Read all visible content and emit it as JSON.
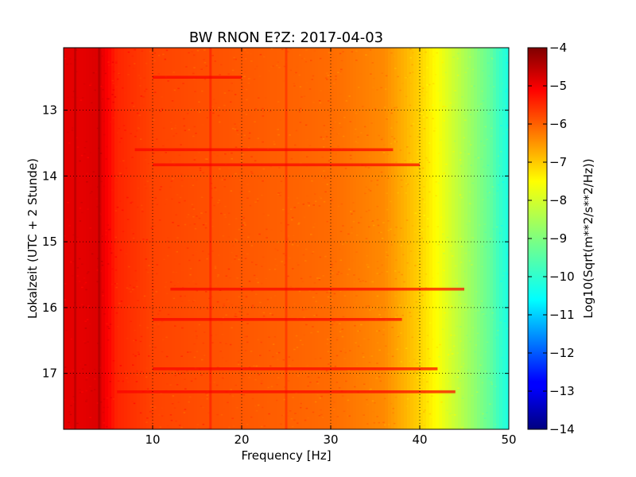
{
  "chart_data": {
    "type": "heatmap",
    "title": "BW RNON E?Z: 2017-04-03",
    "xlabel": "Frequency [Hz]",
    "ylabel": "Lokalzeit (UTC + 2 Stunde)",
    "colorbar_label": "Log10(Sqrt(m**2/s**2/Hz))",
    "xlim": [
      0,
      50
    ],
    "ylim": [
      17.85,
      12.05
    ],
    "x_ticks": [
      10,
      20,
      30,
      40,
      50
    ],
    "x_tick_labels": [
      "10",
      "20",
      "30",
      "40",
      "50"
    ],
    "y_ticks": [
      13,
      14,
      15,
      16,
      17
    ],
    "y_tick_labels": [
      "13",
      "14",
      "15",
      "16",
      "17"
    ],
    "clim": [
      -14,
      -4
    ],
    "colorbar_ticks": [
      -4,
      -5,
      -6,
      -7,
      -8,
      -9,
      -10,
      -11,
      -12,
      -13,
      -14
    ],
    "colorbar_tick_labels": [
      "−4",
      "−5",
      "−6",
      "−7",
      "−8",
      "−9",
      "−10",
      "−11",
      "−12",
      "−13",
      "−14"
    ],
    "colormap": "jet",
    "grid": "dotted",
    "spectrum_profile": {
      "frequency_hz": [
        0,
        2,
        4,
        6,
        10,
        20,
        30,
        36,
        40,
        42,
        44,
        46,
        48,
        49,
        50
      ],
      "log10_amplitude": [
        -5.0,
        -5.0,
        -4.9,
        -5.6,
        -5.9,
        -6.1,
        -6.3,
        -6.6,
        -7.3,
        -7.8,
        -8.3,
        -8.8,
        -9.3,
        -9.7,
        -10.0
      ]
    },
    "persistent_lines_hz": [
      1.3,
      4.0,
      16.5,
      25.0
    ],
    "noise_bands": [
      {
        "time": 12.5,
        "from_hz": 10,
        "to_hz": 20
      },
      {
        "time": 13.6,
        "from_hz": 8,
        "to_hz": 37
      },
      {
        "time": 13.83,
        "from_hz": 10,
        "to_hz": 40
      },
      {
        "time": 15.72,
        "from_hz": 12,
        "to_hz": 45
      },
      {
        "time": 16.18,
        "from_hz": 10,
        "to_hz": 38
      },
      {
        "time": 16.93,
        "from_hz": 10,
        "to_hz": 42
      },
      {
        "time": 17.28,
        "from_hz": 6,
        "to_hz": 44
      }
    ]
  }
}
